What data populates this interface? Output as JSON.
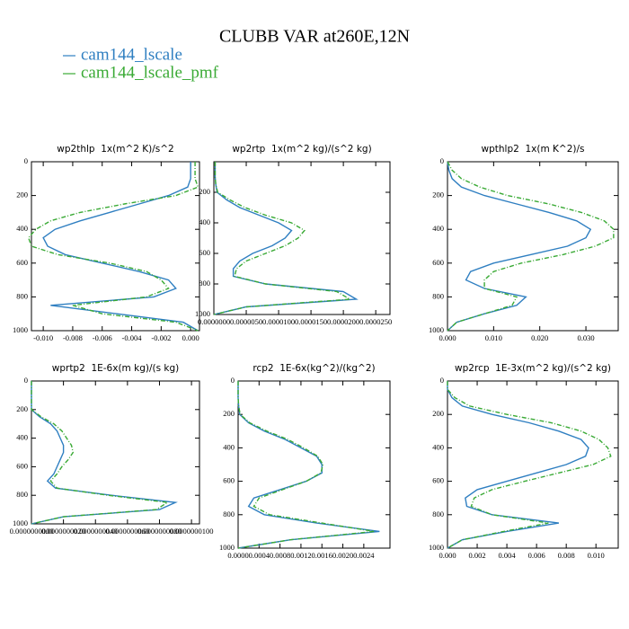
{
  "title": "CLUBB VAR at260E,12N",
  "legend": [
    {
      "name": "cam144_lscale",
      "color": "#2f7fc1",
      "dash": "none"
    },
    {
      "name": "cam144_lscale_pmf",
      "color": "#3aaa35",
      "dash": "5,2,1,2"
    }
  ],
  "chart_data": [
    {
      "type": "line",
      "title": "wp2thlp  1x(m^2 K)/s^2",
      "y": [
        0,
        50,
        100,
        150,
        200,
        250,
        300,
        350,
        400,
        450,
        500,
        550,
        600,
        650,
        700,
        750,
        800,
        850,
        900,
        950,
        1000
      ],
      "series": [
        {
          "values": [
            0.0,
            0.0,
            0.0,
            -0.0002,
            -0.0015,
            -0.0035,
            -0.0055,
            -0.0075,
            -0.0092,
            -0.01,
            -0.0097,
            -0.0085,
            -0.006,
            -0.0035,
            -0.0015,
            -0.001,
            -0.0025,
            -0.0095,
            -0.005,
            -0.0005,
            0.0005
          ]
        },
        {
          "values": [
            0.0003,
            0.0003,
            0.0003,
            0.0005,
            -0.001,
            -0.0045,
            -0.0075,
            -0.0095,
            -0.0105,
            -0.011,
            -0.0108,
            -0.009,
            -0.0055,
            -0.003,
            -0.002,
            -0.0015,
            -0.003,
            -0.008,
            -0.006,
            -0.001,
            0.0005
          ]
        }
      ],
      "xlim": [
        -0.0108,
        0.0006
      ],
      "xticks": [
        {
          "value": -0.01,
          "label": "-0.010"
        },
        {
          "value": -0.008,
          "label": "-0.008"
        },
        {
          "value": -0.006,
          "label": "-0.006"
        },
        {
          "value": -0.004,
          "label": "-0.004"
        },
        {
          "value": -0.002,
          "label": "-0.002"
        },
        {
          "value": 0,
          "label": "0.000"
        }
      ],
      "ylim": [
        1000,
        0
      ],
      "yticks": [
        0,
        200,
        400,
        600,
        800,
        1000
      ]
    },
    {
      "type": "line",
      "title": "wp2rtp  1x(m^2 kg)/(s^2 kg)",
      "y": [
        0,
        50,
        100,
        150,
        200,
        250,
        300,
        350,
        400,
        450,
        500,
        550,
        600,
        650,
        700,
        750,
        800,
        850,
        900,
        950,
        1000
      ],
      "series": [
        {
          "values": [
            2e-07,
            2e-07,
            2e-07,
            3e-07,
            5e-07,
            2e-06,
            4e-06,
            7e-06,
            1e-05,
            1.2e-05,
            1.1e-05,
            9e-06,
            6e-06,
            4e-06,
            3e-06,
            3e-06,
            8e-06,
            2e-05,
            2.2e-05,
            5e-06,
            0.0
          ]
        },
        {
          "values": [
            2e-07,
            2e-07,
            2e-07,
            3e-07,
            6e-07,
            2.5e-06,
            4.8e-06,
            8e-06,
            1.2e-05,
            1.4e-05,
            1.3e-05,
            1.1e-05,
            8e-06,
            5e-06,
            3.5e-06,
            3.2e-06,
            8e-06,
            1.9e-05,
            2.1e-05,
            5e-06,
            0.0
          ]
        }
      ],
      "xlim": [
        0,
        2.72e-05
      ],
      "xticks": [
        {
          "value": 0,
          "label": "0.0000000"
        },
        {
          "value": 5e-06,
          "label": "0.0000050"
        },
        {
          "value": 1e-05,
          "label": "0.0000100"
        },
        {
          "value": 1.5e-05,
          "label": "0.0000150"
        },
        {
          "value": 2e-05,
          "label": "0.0000200"
        },
        {
          "value": 2.5e-05,
          "label": "0.0000250"
        }
      ],
      "ylim": [
        1000,
        0
      ],
      "yticks": [
        200,
        400,
        600,
        800,
        1000
      ]
    },
    {
      "type": "line",
      "title": "wpthlp2  1x(m K^2)/s",
      "y": [
        0,
        50,
        100,
        150,
        200,
        250,
        300,
        350,
        400,
        450,
        500,
        550,
        600,
        650,
        700,
        750,
        800,
        850,
        900,
        950,
        1000
      ],
      "series": [
        {
          "values": [
            0.0,
            0.0003,
            0.001,
            0.003,
            0.008,
            0.015,
            0.022,
            0.028,
            0.031,
            0.03,
            0.026,
            0.018,
            0.01,
            0.005,
            0.004,
            0.008,
            0.017,
            0.015,
            0.008,
            0.002,
            0.0
          ]
        },
        {
          "values": [
            0.0,
            0.001,
            0.003,
            0.007,
            0.013,
            0.022,
            0.029,
            0.034,
            0.036,
            0.036,
            0.032,
            0.025,
            0.016,
            0.01,
            0.008,
            0.008,
            0.015,
            0.014,
            0.008,
            0.002,
            0.0
          ]
        }
      ],
      "xlim": [
        0,
        0.037
      ],
      "xticks": [
        {
          "value": 0,
          "label": "0.000"
        },
        {
          "value": 0.01,
          "label": "0.010"
        },
        {
          "value": 0.02,
          "label": "0.020"
        },
        {
          "value": 0.03,
          "label": "0.030"
        }
      ],
      "ylim": [
        1000,
        0
      ],
      "yticks": [
        0,
        200,
        400,
        600,
        800,
        1000
      ]
    },
    {
      "type": "line",
      "title": "wprtp2  1E-6x(m kg)/(s kg)",
      "y": [
        0,
        50,
        100,
        150,
        200,
        250,
        300,
        350,
        400,
        450,
        500,
        550,
        600,
        650,
        700,
        750,
        800,
        850,
        900,
        950,
        1000
      ],
      "series": [
        {
          "values": [
            0.0,
            0.0,
            0.0,
            0.0,
            1e-12,
            5e-10,
            1.2e-09,
            1.6e-09,
            1.8e-09,
            2e-09,
            2e-09,
            1.8e-09,
            1.6e-09,
            1.4e-09,
            1e-09,
            1.5e-09,
            5e-09,
            9e-09,
            8e-09,
            2e-09,
            0.0
          ]
        },
        {
          "values": [
            0.0,
            0.0,
            0.0,
            0.0,
            2e-12,
            6e-10,
            1.4e-09,
            1.9e-09,
            2.2e-09,
            2.5e-09,
            2.6e-09,
            2.3e-09,
            1.9e-09,
            1.6e-09,
            1.2e-09,
            1.6e-09,
            4.8e-09,
            8.5e-09,
            7.8e-09,
            2e-09,
            0.0
          ]
        }
      ],
      "xlim": [
        0,
        1.05e-08
      ],
      "xticks": [
        {
          "value": 0,
          "label": "0.0000000000"
        },
        {
          "value": 2e-09,
          "label": "0.0000000020"
        },
        {
          "value": 4e-09,
          "label": "0.0000000040"
        },
        {
          "value": 6e-09,
          "label": "0.0000000060"
        },
        {
          "value": 8e-09,
          "label": "0.0000000080"
        },
        {
          "value": 1e-08,
          "label": "0.0000000100"
        }
      ],
      "ylim": [
        1000,
        0
      ],
      "yticks": [
        0,
        200,
        400,
        600,
        800,
        1000
      ]
    },
    {
      "type": "line",
      "title": "rcp2  1E-6x(kg^2)/(kg^2)",
      "y": [
        0,
        50,
        100,
        150,
        200,
        250,
        300,
        350,
        400,
        450,
        500,
        550,
        600,
        650,
        700,
        750,
        800,
        850,
        900,
        950,
        1000
      ],
      "series": [
        {
          "values": [
            0.0,
            0.0,
            0.0,
            1e-05,
            3e-05,
            0.0002,
            0.0005,
            0.0009,
            0.0012,
            0.0015,
            0.0016,
            0.0016,
            0.0013,
            0.0008,
            0.0003,
            0.0002,
            0.0005,
            0.0015,
            0.0027,
            0.001,
            0.0
          ]
        },
        {
          "values": [
            0.0,
            0.0,
            0.0,
            1e-05,
            4e-05,
            0.00022,
            0.00055,
            0.00095,
            0.00125,
            0.00152,
            0.00162,
            0.00158,
            0.0013,
            0.00085,
            0.0004,
            0.0003,
            0.0006,
            0.0016,
            0.0026,
            0.001,
            0.0
          ]
        }
      ],
      "xlim": [
        0,
        0.0029
      ],
      "xticks": [
        {
          "value": 0,
          "label": "0.0000"
        },
        {
          "value": 0.0004,
          "label": "0.0004"
        },
        {
          "value": 0.0008,
          "label": "0.0008"
        },
        {
          "value": 0.0012,
          "label": "0.0012"
        },
        {
          "value": 0.0016,
          "label": "0.0016"
        },
        {
          "value": 0.002,
          "label": "0.0020"
        },
        {
          "value": 0.0024,
          "label": "0.0024"
        }
      ],
      "ylim": [
        1000,
        0
      ],
      "yticks": [
        0,
        200,
        400,
        600,
        800,
        1000
      ]
    },
    {
      "type": "line",
      "title": "wp2rcp  1E-3x(m^2 kg)/(s^2 kg)",
      "y": [
        0,
        50,
        100,
        150,
        200,
        250,
        300,
        350,
        400,
        450,
        500,
        550,
        600,
        650,
        700,
        750,
        800,
        850,
        900,
        950,
        1000
      ],
      "series": [
        {
          "values": [
            0.0,
            0.0,
            0.0003,
            0.001,
            0.003,
            0.0055,
            0.0075,
            0.009,
            0.0095,
            0.0093,
            0.008,
            0.006,
            0.004,
            0.002,
            0.0012,
            0.0013,
            0.003,
            0.0075,
            0.004,
            0.001,
            0.0
          ]
        },
        {
          "values": [
            0.0,
            0.0,
            0.0005,
            0.0015,
            0.004,
            0.007,
            0.009,
            0.0102,
            0.0108,
            0.011,
            0.0098,
            0.0075,
            0.0052,
            0.003,
            0.0018,
            0.0016,
            0.003,
            0.0068,
            0.0038,
            0.001,
            0.0
          ]
        }
      ],
      "xlim": [
        0,
        0.0115
      ],
      "xticks": [
        {
          "value": 0,
          "label": "0.000"
        },
        {
          "value": 0.002,
          "label": "0.002"
        },
        {
          "value": 0.004,
          "label": "0.004"
        },
        {
          "value": 0.006,
          "label": "0.006"
        },
        {
          "value": 0.008,
          "label": "0.008"
        },
        {
          "value": 0.01,
          "label": "0.010"
        }
      ],
      "ylim": [
        1000,
        0
      ],
      "yticks": [
        0,
        200,
        400,
        600,
        800,
        1000
      ]
    }
  ]
}
